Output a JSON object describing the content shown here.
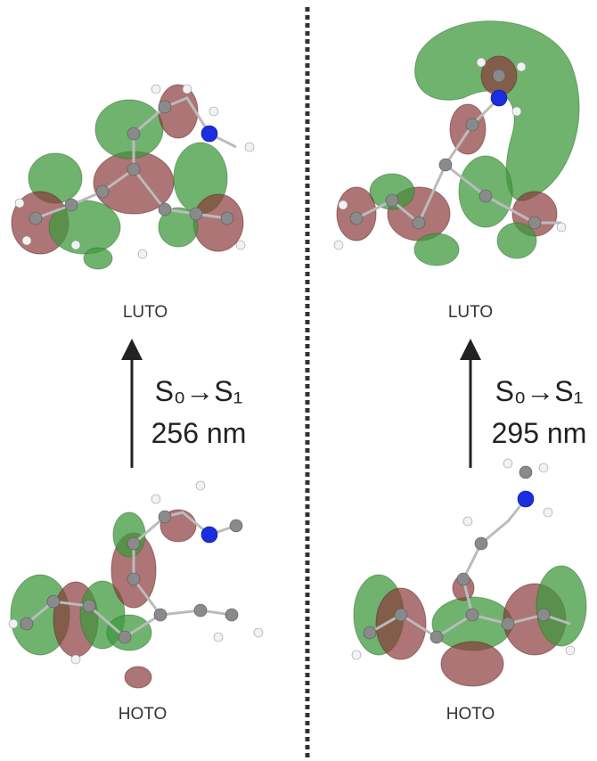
{
  "panels": [
    {
      "top_label": "LUTO",
      "transition": "S₀→S₁",
      "wavelength": "256 nm",
      "bottom_label": "HOTO"
    },
    {
      "top_label": "LUTO",
      "transition": "S₀→S₁",
      "wavelength": "295 nm",
      "bottom_label": "HOTO"
    }
  ]
}
